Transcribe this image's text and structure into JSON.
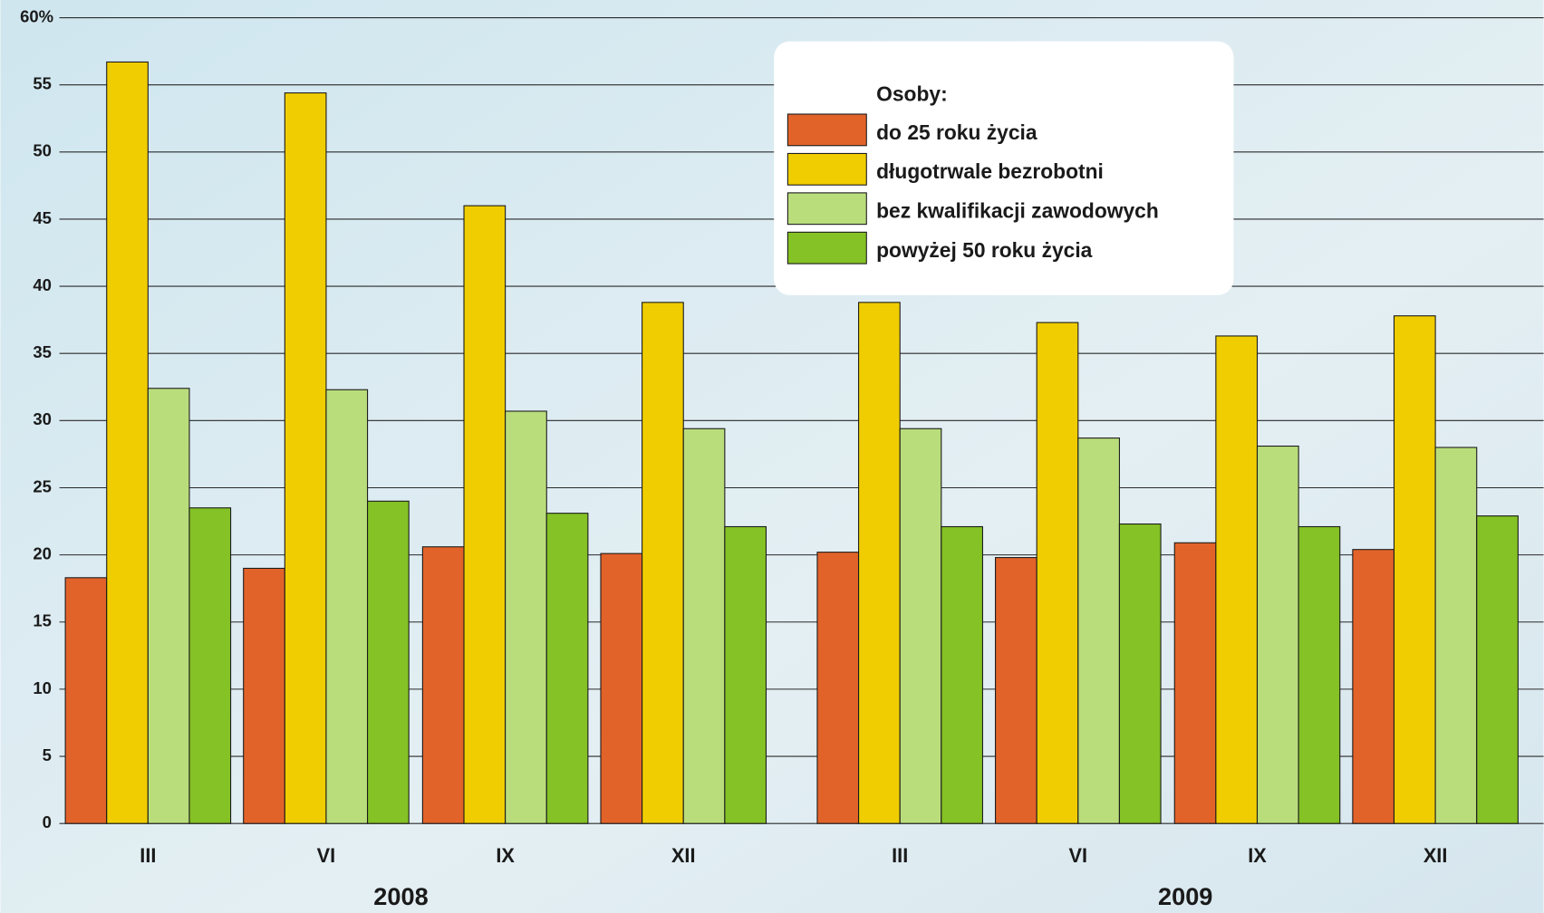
{
  "chart_data": {
    "type": "bar",
    "legend_title": "Osoby:",
    "categories": [
      "III",
      "VI",
      "IX",
      "XII",
      "III",
      "VI",
      "IX",
      "XII"
    ],
    "years": [
      "2008",
      "2009"
    ],
    "series": [
      {
        "name": "do 25 roku życia",
        "color": "#e2632a",
        "values": [
          18.3,
          19.0,
          20.6,
          20.1,
          20.2,
          19.8,
          20.9,
          20.4
        ]
      },
      {
        "name": "długotrwale bezrobotni",
        "color": "#f0cd00",
        "values": [
          56.7,
          54.4,
          46.0,
          38.8,
          38.8,
          37.3,
          36.3,
          37.8
        ]
      },
      {
        "name": "bez kwalifikacji zawodowych",
        "color": "#badd7c",
        "values": [
          32.4,
          32.3,
          30.7,
          29.4,
          29.4,
          28.7,
          28.1,
          28.0
        ]
      },
      {
        "name": "powyżej 50 roku życia",
        "color": "#84c225",
        "values": [
          23.5,
          24.0,
          23.1,
          22.1,
          22.1,
          22.3,
          22.1,
          22.9
        ]
      }
    ],
    "ylim": [
      0,
      60
    ],
    "yticks": [
      0,
      5,
      10,
      15,
      20,
      25,
      30,
      35,
      40,
      45,
      50,
      55,
      {
        "value": 60,
        "label": "60%"
      }
    ],
    "grid": true,
    "legend": "top-right"
  }
}
